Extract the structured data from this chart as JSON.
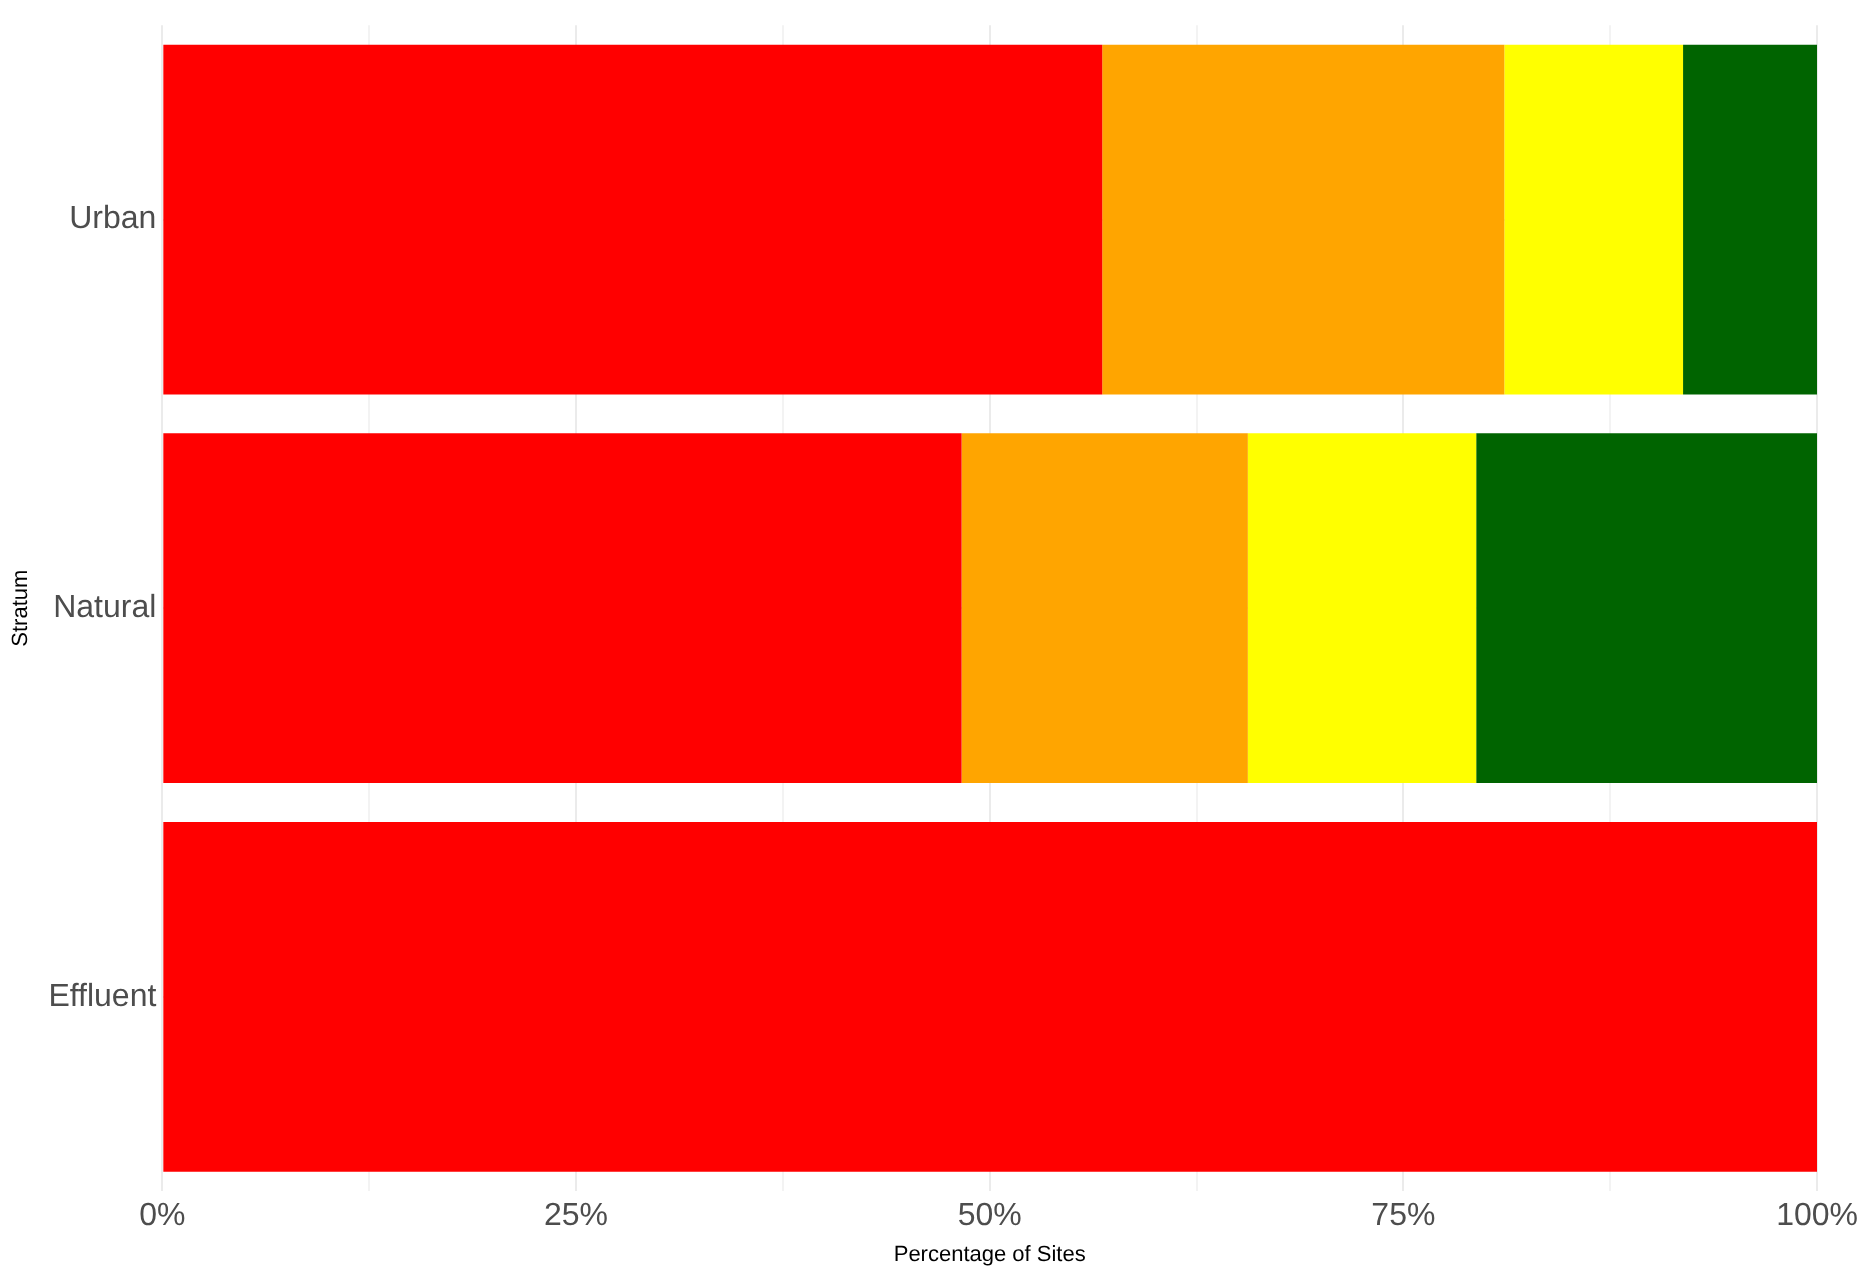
{
  "chart_data": {
    "type": "bar",
    "orientation": "horizontal",
    "stacked": true,
    "xlabel": "Percentage of Sites",
    "ylabel": "Stratum",
    "categories": [
      "Urban",
      "Natural",
      "Effluent"
    ],
    "series": [
      {
        "color": "#ff0000",
        "values": [
          56.8,
          48.3,
          100
        ]
      },
      {
        "color": "#ffa500",
        "values": [
          24.3,
          17.3,
          0
        ]
      },
      {
        "color": "#ffff00",
        "values": [
          10.8,
          13.8,
          0
        ]
      },
      {
        "color": "#006400",
        "values": [
          8.1,
          20.6,
          0
        ]
      }
    ],
    "xlim": [
      0,
      100
    ],
    "xticks": [
      {
        "value": 0,
        "label": "0%"
      },
      {
        "value": 12.5,
        "label": null
      },
      {
        "value": 25,
        "label": "25%"
      },
      {
        "value": 37.5,
        "label": null
      },
      {
        "value": 50,
        "label": "50%"
      },
      {
        "value": 62.5,
        "label": null
      },
      {
        "value": 75,
        "label": "75%"
      },
      {
        "value": 87.5,
        "label": null
      },
      {
        "value": 100,
        "label": "100%"
      }
    ],
    "grid": true,
    "legend": false
  }
}
